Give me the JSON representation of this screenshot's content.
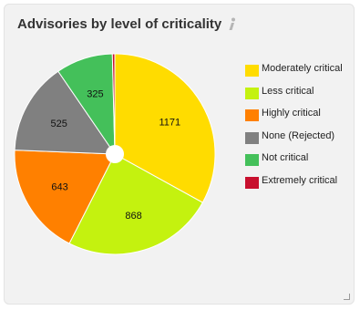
{
  "widget": {
    "title": "Advisories by level of criticality",
    "info_icon": "info-icon"
  },
  "chart_data": {
    "type": "pie",
    "title": "Advisories by level of criticality",
    "series": [
      {
        "name": "Moderately critical",
        "value": 1171,
        "color": "#ffdc00"
      },
      {
        "name": "Less critical",
        "value": 868,
        "color": "#c4f20f"
      },
      {
        "name": "Highly critical",
        "value": 643,
        "color": "#ff8000"
      },
      {
        "name": "None (Rejected)",
        "value": 525,
        "color": "#808080"
      },
      {
        "name": "Not critical",
        "value": 325,
        "color": "#44c05a"
      },
      {
        "name": "Extremely critical",
        "value": 14,
        "color": "#c8102e"
      }
    ],
    "legend_position": "right",
    "start_angle_deg": 0,
    "direction": "clockwise",
    "center_hole": true
  }
}
